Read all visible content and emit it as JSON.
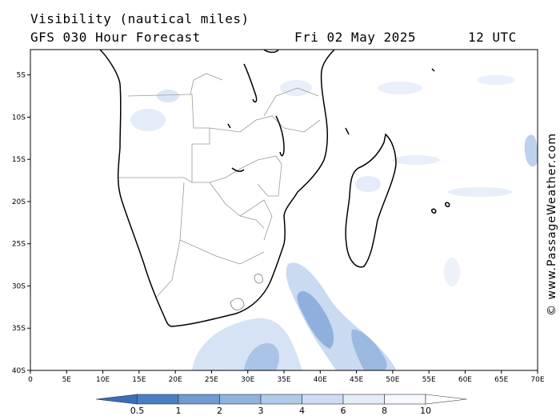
{
  "header": {
    "title": "Visibility (nautical miles)",
    "subtitle": "GFS 030 Hour Forecast",
    "date": "Fri 02 May 2025",
    "time": "12 UTC"
  },
  "credit": "© www.PassageWeather.com",
  "chart_data": {
    "type": "heatmap",
    "xlim": [
      0,
      70
    ],
    "ylim": [
      -40,
      -2
    ],
    "x_ticks": [
      "0",
      "5E",
      "10E",
      "15E",
      "20E",
      "25E",
      "30E",
      "35E",
      "40E",
      "45E",
      "50E",
      "55E",
      "60E",
      "65E",
      "70E"
    ],
    "y_ticks": [
      "5S",
      "10S",
      "15S",
      "20S",
      "25S",
      "30S",
      "35S",
      "40S"
    ],
    "colorbar": {
      "labels": [
        "0.5",
        "1",
        "2",
        "3",
        "4",
        "6",
        "8",
        "10"
      ],
      "colors": [
        "#3a6fb8",
        "#4a7fc4",
        "#6f9ad3",
        "#8fb2df",
        "#b0c9e9",
        "#cddcf2",
        "#e4ecf8",
        "#f5f8fd",
        "#ffffff"
      ]
    }
  }
}
